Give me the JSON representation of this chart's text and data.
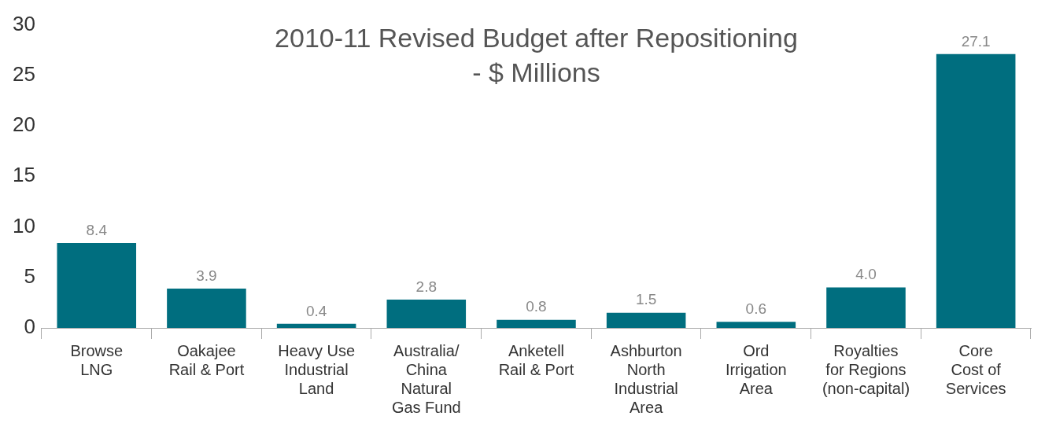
{
  "chart_data": {
    "type": "bar",
    "title": "2010-11 Revised Budget after Repositioning\n- $ Millions",
    "categories": [
      "Browse\nLNG",
      "Oakajee\nRail & Port",
      "Heavy Use\nIndustrial\nLand",
      "Australia/\nChina\nNatural\nGas Fund",
      "Anketell\nRail & Port",
      "Ashburton\nNorth\nIndustrial\nArea",
      "Ord\nIrrigation\nArea",
      "Royalties\nfor Regions\n(non-capital)",
      "Core\nCost of\nServices"
    ],
    "values": [
      8.4,
      3.9,
      0.4,
      2.8,
      0.8,
      1.5,
      0.6,
      4.0,
      27.1
    ],
    "value_labels": [
      "8.4",
      "3.9",
      "0.4",
      "2.8",
      "0.8",
      "1.5",
      "0.6",
      "4.0",
      "27.1"
    ],
    "color": "#006e7f",
    "ylim": [
      0,
      30
    ],
    "yticks": [
      0,
      5,
      10,
      15,
      20,
      25,
      30
    ],
    "grid": false,
    "legend": false
  }
}
